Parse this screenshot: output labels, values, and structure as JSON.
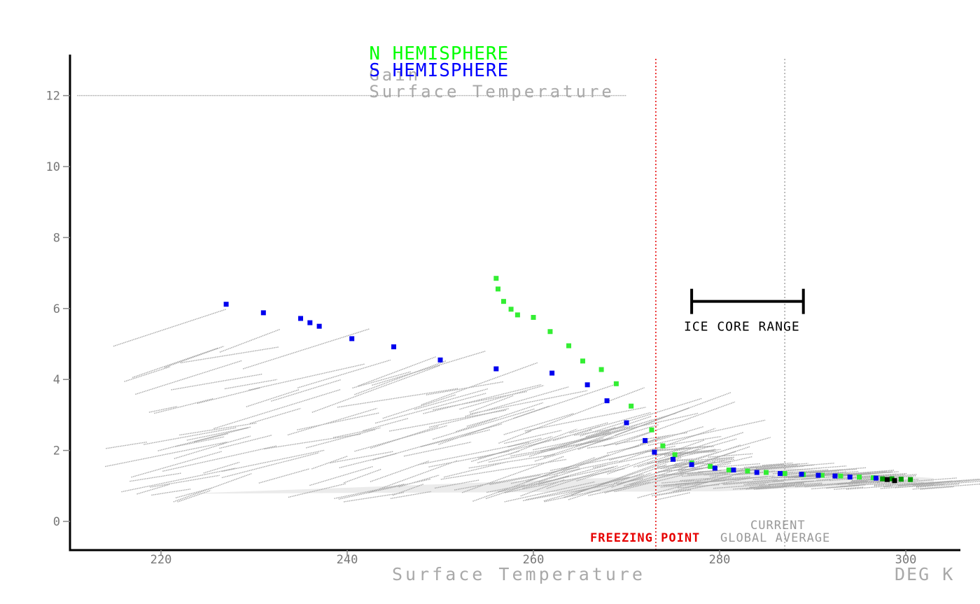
{
  "chart_data": {
    "type": "scatter",
    "title": "",
    "legend": [
      {
        "label": "N HEMISPHERE",
        "color": "#00ff00",
        "suffix": "Gain"
      },
      {
        "label": "S HEMISPHERE",
        "color": "#0000ff",
        "suffix": "Surface Temperature"
      }
    ],
    "xlabel": "Surface Temperature",
    "xunit": "DEG K",
    "ylabel": "",
    "xlim": [
      211,
      307
    ],
    "ylim": [
      -0.8,
      13.1
    ],
    "xticks": [
      220,
      240,
      260,
      280,
      300
    ],
    "yticks": [
      0,
      2,
      4,
      6,
      8,
      10,
      12
    ],
    "colors": {
      "north": "#33ee33",
      "north_dark": "#009900",
      "south": "#0000ee",
      "south_dark": "#000000",
      "background_points": "#a6a6a6",
      "freezing": "#e60000",
      "axis": "#000000"
    },
    "series": [
      {
        "name": "N HEMISPHERE",
        "color": "#33ee33",
        "points": [
          [
            256.0,
            6.85
          ],
          [
            256.2,
            6.55
          ],
          [
            256.8,
            6.2
          ],
          [
            257.6,
            5.98
          ],
          [
            258.3,
            5.82
          ],
          [
            260.0,
            5.75
          ],
          [
            261.8,
            5.35
          ],
          [
            263.8,
            4.95
          ],
          [
            265.3,
            4.52
          ],
          [
            267.3,
            4.28
          ],
          [
            268.9,
            3.88
          ],
          [
            270.5,
            3.25
          ],
          [
            272.7,
            2.58
          ],
          [
            273.9,
            2.13
          ],
          [
            275.2,
            1.88
          ],
          [
            277.0,
            1.65
          ],
          [
            279.0,
            1.55
          ],
          [
            281.0,
            1.45
          ],
          [
            283.0,
            1.42
          ],
          [
            285.0,
            1.38
          ],
          [
            287.0,
            1.35
          ],
          [
            289.0,
            1.32
          ],
          [
            291.0,
            1.3
          ],
          [
            293.0,
            1.28
          ],
          [
            295.0,
            1.25
          ],
          [
            296.5,
            1.23
          ],
          [
            297.5,
            1.2
          ],
          [
            298.5,
            1.2
          ],
          [
            299.5,
            1.19
          ],
          [
            300.5,
            1.18
          ]
        ]
      },
      {
        "name": "S HEMISPHERE",
        "color": "#0000ee",
        "points": [
          [
            227.0,
            6.12
          ],
          [
            231.0,
            5.88
          ],
          [
            235.0,
            5.72
          ],
          [
            236.0,
            5.6
          ],
          [
            237.0,
            5.5
          ],
          [
            240.5,
            5.15
          ],
          [
            245.0,
            4.92
          ],
          [
            250.0,
            4.55
          ],
          [
            256.0,
            4.3
          ],
          [
            262.0,
            4.18
          ],
          [
            265.8,
            3.85
          ],
          [
            267.9,
            3.4
          ],
          [
            270.0,
            2.78
          ],
          [
            272.0,
            2.28
          ],
          [
            273.0,
            1.95
          ],
          [
            275.0,
            1.75
          ],
          [
            277.0,
            1.6
          ],
          [
            279.5,
            1.5
          ],
          [
            281.5,
            1.45
          ],
          [
            284.0,
            1.38
          ],
          [
            286.5,
            1.35
          ],
          [
            288.8,
            1.33
          ],
          [
            290.6,
            1.3
          ],
          [
            292.4,
            1.28
          ],
          [
            294.0,
            1.25
          ],
          [
            296.8,
            1.22
          ],
          [
            298.0,
            1.18
          ],
          [
            298.8,
            1.15
          ]
        ]
      }
    ],
    "reference_lines": [
      {
        "label": "FREEZING POINT",
        "x": 273.15,
        "color": "#e60000"
      },
      {
        "label_line1": "CURRENT",
        "label_line2": "GLOBAL AVERAGE",
        "x": 287.0,
        "color": "#a6a6a6"
      }
    ],
    "annotation": {
      "label": "ICE CORE RANGE",
      "x_range": [
        277.0,
        289.0
      ],
      "y": 6.2
    }
  }
}
